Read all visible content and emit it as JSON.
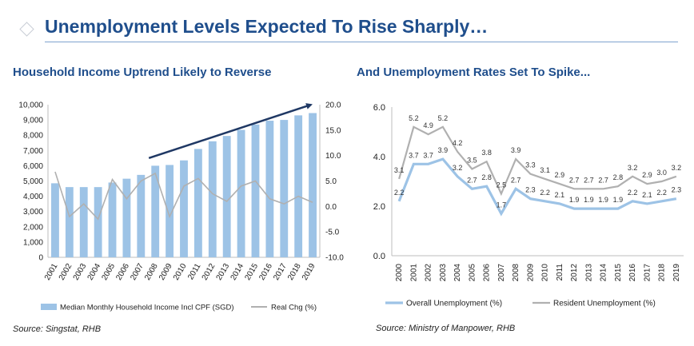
{
  "page": {
    "title": "Unemployment Levels Expected To Rise Sharply…"
  },
  "colors": {
    "title_blue": "#1f4e8c",
    "bar_blue": "#9dc3e6",
    "line_grey": "#b0b0b0",
    "overall_line": "#9dc3e6",
    "arrow_navy": "#1f3864"
  },
  "chart_data": [
    {
      "type": "bar",
      "title": "Household Income Uptrend Likely to Reverse",
      "source": "Source:  Singstat, RHB",
      "categories": [
        "2001",
        "2002",
        "2003",
        "2004",
        "2005",
        "2006",
        "2007",
        "2008",
        "2009",
        "2010",
        "2011",
        "2012",
        "2013",
        "2014",
        "2015",
        "2016",
        "2017",
        "2018",
        "2019"
      ],
      "left_axis": {
        "ylim": [
          0,
          10000
        ],
        "ticks": [
          "0",
          "1,000",
          "2,000",
          "3,000",
          "4,000",
          "5,000",
          "6,000",
          "7,000",
          "8,000",
          "9,000",
          "10,000"
        ],
        "tick_values": [
          0,
          1000,
          2000,
          3000,
          4000,
          5000,
          6000,
          7000,
          8000,
          9000,
          10000
        ]
      },
      "right_axis": {
        "ylim": [
          -10,
          20
        ],
        "ticks": [
          "-10.0",
          "-5.0",
          "0.0",
          "5.0",
          "10.0",
          "15.0",
          "20.0"
        ],
        "tick_values": [
          -10,
          -5,
          0,
          5,
          10,
          15,
          20
        ]
      },
      "series": [
        {
          "name": "Median Monthly Household Income Incl CPF (SGD)",
          "kind": "bar",
          "axis": "left",
          "values": [
            4850,
            4600,
            4600,
            4600,
            4900,
            5150,
            5400,
            6000,
            6050,
            6350,
            7100,
            7600,
            7950,
            8350,
            8700,
            8950,
            9000,
            9300,
            9450
          ]
        },
        {
          "name": "Real Chg  (%)",
          "kind": "line",
          "axis": "right",
          "values": [
            6.8,
            -2.0,
            0.5,
            -2.5,
            5.3,
            1.5,
            5.0,
            6.5,
            -2.0,
            4.0,
            5.5,
            2.5,
            1.0,
            4.0,
            5.0,
            1.5,
            0.5,
            2.0,
            0.8
          ]
        }
      ],
      "trend_arrow": {
        "from": {
          "x": "2008",
          "y": 9.5
        },
        "to": {
          "x": "2019",
          "y": 20.0
        }
      },
      "legend": {
        "position": "bottom",
        "items": [
          "Median Monthly Household Income Incl CPF (SGD)",
          "Real Chg  (%)"
        ]
      }
    },
    {
      "type": "line",
      "title": "And Unemployment Rates Set To Spike...",
      "source": "Source:  Ministry of Manpower, RHB",
      "categories": [
        "2000",
        "2001",
        "2002",
        "2003",
        "2004",
        "2005",
        "2006",
        "2007",
        "2008",
        "2009",
        "2010",
        "2011",
        "2012",
        "2013",
        "2014",
        "2015",
        "2016",
        "2017",
        "2018",
        "2019"
      ],
      "ylim": [
        0,
        6
      ],
      "ticks": [
        "0.0",
        "2.0",
        "4.0",
        "6.0"
      ],
      "tick_values": [
        0,
        2,
        4,
        6
      ],
      "series": [
        {
          "name": "Overall Unemployment (%)",
          "values": [
            2.2,
            3.7,
            3.7,
            3.9,
            3.2,
            2.7,
            2.8,
            1.7,
            2.7,
            2.3,
            2.2,
            2.1,
            1.9,
            1.9,
            1.9,
            1.9,
            2.2,
            2.1,
            2.2,
            2.3
          ],
          "labels": [
            "2.2",
            "3.7",
            "3.7",
            "3.9",
            "3.2",
            "2.7",
            "2.8",
            "1.7",
            "2.7",
            "2.3",
            "2.2",
            "2.1",
            "1.9",
            "1.9",
            "1.9",
            "1.9",
            "2.2",
            "2.1",
            "2.2",
            "2.3"
          ]
        },
        {
          "name": "Resident Unemployment (%)",
          "values": [
            3.1,
            5.2,
            4.9,
            5.2,
            4.2,
            3.5,
            3.8,
            2.5,
            3.9,
            3.3,
            3.1,
            2.9,
            2.7,
            2.7,
            2.7,
            2.8,
            3.2,
            2.9,
            3.0,
            3.2
          ],
          "labels": [
            "3.1",
            "5.2",
            "4.9",
            "5.2",
            "4.2",
            "3.5",
            "3.8",
            "2.5",
            "3.9",
            "3.3",
            "3.1",
            "2.9",
            "2.7",
            "2.7",
            "2.7",
            "2.8",
            "3.2",
            "2.9",
            "3.0",
            "3.2"
          ]
        }
      ],
      "legend": {
        "position": "bottom",
        "items": [
          "Overall Unemployment (%)",
          "Resident Unemployment (%)"
        ]
      }
    }
  ]
}
